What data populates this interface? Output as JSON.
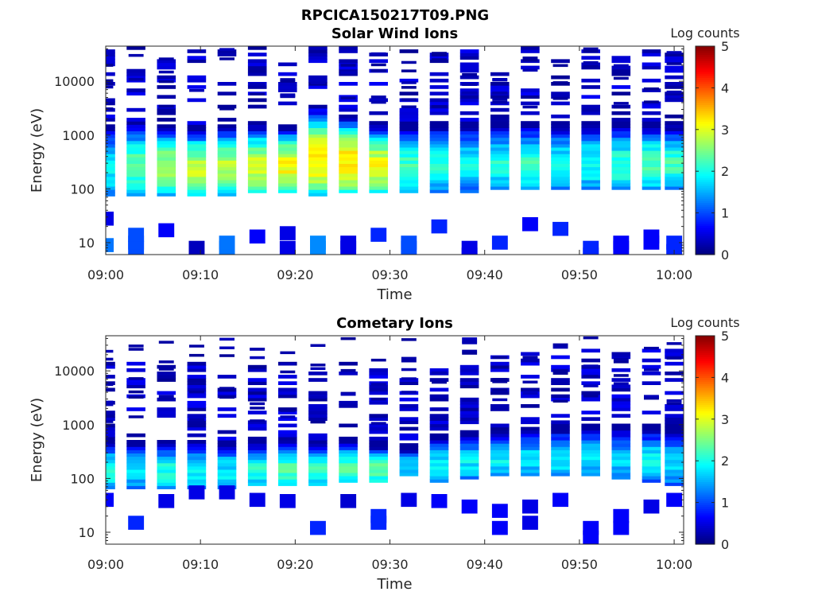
{
  "figure_title": "RPCICA150217T09.PNG",
  "chart_data": [
    {
      "type": "heatmap",
      "title": "Solar Wind Ions",
      "xlabel": "Time",
      "ylabel": "Energy (eV)",
      "yscale": "log",
      "ylim": [
        6,
        45000
      ],
      "x_ticks": [
        "09:00",
        "09:10",
        "09:20",
        "09:30",
        "09:40",
        "09:50",
        "10:00"
      ],
      "x_range_minutes": [
        0,
        61
      ],
      "y_ticks": [
        "10",
        "100",
        "1000",
        "10000"
      ],
      "y_tick_values": [
        10,
        100,
        1000,
        10000
      ],
      "colorbar": {
        "label": "Log counts",
        "min": 0,
        "max": 5,
        "ticks": [
          "0",
          "1",
          "2",
          "3",
          "4",
          "5"
        ],
        "colormap": "jet"
      },
      "columns": [
        {
          "t": 0.0,
          "core": [
            70,
            1600
          ],
          "peak": 1.8,
          "sparse": [
            [
              9,
              1.2
            ],
            [
              28,
              0.5
            ]
          ]
        },
        {
          "t": 3.2,
          "core": [
            70,
            1900
          ],
          "peak": 2.3,
          "sparse": [
            [
              8,
              1.0
            ],
            [
              10,
              1.0
            ],
            [
              14,
              1.0
            ]
          ]
        },
        {
          "t": 6.4,
          "core": [
            75,
            1600
          ],
          "peak": 2.7,
          "sparse": [
            [
              17,
              0.6
            ]
          ]
        },
        {
          "t": 9.6,
          "core": [
            70,
            1500
          ],
          "peak": 2.8,
          "sparse": [
            [
              8,
              0.3
            ]
          ]
        },
        {
          "t": 12.8,
          "core": [
            75,
            1600
          ],
          "peak": 2.8,
          "sparse": [
            [
              8,
              1.2
            ],
            [
              10,
              1.2
            ]
          ]
        },
        {
          "t": 16.0,
          "core": [
            80,
            1700
          ],
          "peak": 2.9,
          "sparse": [
            [
              13,
              0.6
            ]
          ]
        },
        {
          "t": 19.2,
          "core": [
            80,
            1600
          ],
          "peak": 3.1,
          "sparse": [
            [
              8,
              0.5
            ],
            [
              15,
              0.5
            ]
          ]
        },
        {
          "t": 22.4,
          "core": [
            70,
            3600
          ],
          "peak": 3.2,
          "sparse": [
            [
              8,
              1.3
            ],
            [
              10,
              1.3
            ]
          ]
        },
        {
          "t": 25.6,
          "core": [
            80,
            2500
          ],
          "peak": 3.3,
          "sparse": [
            [
              8,
              0.5
            ],
            [
              10,
              0.5
            ]
          ]
        },
        {
          "t": 28.8,
          "core": [
            85,
            1700
          ],
          "peak": 3.0,
          "sparse": [
            [
              14,
              0.8
            ]
          ]
        },
        {
          "t": 32.0,
          "core": [
            85,
            1500
          ],
          "peak": 2.2,
          "sparse": [
            [
              8,
              1.0
            ],
            [
              10,
              1.0
            ]
          ]
        },
        {
          "t": 35.2,
          "core": [
            90,
            1700
          ],
          "peak": 2.1,
          "sparse": [
            [
              20,
              0.8
            ]
          ]
        },
        {
          "t": 38.4,
          "core": [
            90,
            1700
          ],
          "peak": 1.9,
          "sparse": [
            [
              6,
              0.5
            ],
            [
              8,
              0.5
            ]
          ]
        },
        {
          "t": 41.6,
          "core": [
            95,
            1700
          ],
          "peak": 2.0,
          "sparse": [
            [
              10,
              0.8
            ]
          ]
        },
        {
          "t": 44.8,
          "core": [
            95,
            1700
          ],
          "peak": 2.1,
          "sparse": [
            [
              22,
              0.6
            ]
          ]
        },
        {
          "t": 48.0,
          "core": [
            95,
            1700
          ],
          "peak": 1.9,
          "sparse": [
            [
              18,
              0.8
            ]
          ]
        },
        {
          "t": 51.2,
          "core": [
            100,
            1700
          ],
          "peak": 2.0,
          "sparse": [
            [
              6,
              0.8
            ],
            [
              8,
              0.8
            ]
          ]
        },
        {
          "t": 54.4,
          "core": [
            95,
            1700
          ],
          "peak": 2.1,
          "sparse": [
            [
              8,
              0.6
            ],
            [
              10,
              0.6
            ]
          ]
        },
        {
          "t": 57.6,
          "core": [
            100,
            1700
          ],
          "peak": 2.3,
          "sparse": [
            [
              10,
              0.6
            ],
            [
              13,
              0.6
            ]
          ]
        },
        {
          "t": 60.0,
          "core": [
            100,
            1700
          ],
          "peak": 2.2,
          "sparse": [
            [
              7,
              0.8
            ],
            [
              10,
              0.8
            ]
          ]
        }
      ]
    },
    {
      "type": "heatmap",
      "title": "Cometary Ions",
      "xlabel": "Time",
      "ylabel": "Energy (eV)",
      "yscale": "log",
      "ylim": [
        6,
        45000
      ],
      "x_ticks": [
        "09:00",
        "09:10",
        "09:20",
        "09:30",
        "09:40",
        "09:50",
        "10:00"
      ],
      "x_range_minutes": [
        0,
        61
      ],
      "y_ticks": [
        "10",
        "100",
        "1000",
        "10000"
      ],
      "y_tick_values": [
        10,
        100,
        1000,
        10000
      ],
      "colorbar": {
        "label": "Log counts",
        "min": 0,
        "max": 5,
        "ticks": [
          "0",
          "1",
          "2",
          "3",
          "4",
          "5"
        ],
        "colormap": "jet"
      },
      "columns": [
        {
          "t": 0.0,
          "core": [
            65,
            600
          ],
          "peak": 1.9,
          "sparse": [
            [
              40,
              0.6
            ]
          ]
        },
        {
          "t": 3.2,
          "core": [
            65,
            550
          ],
          "peak": 1.7,
          "sparse": [
            [
              15,
              0.8
            ]
          ]
        },
        {
          "t": 6.4,
          "core": [
            65,
            550
          ],
          "peak": 2.0,
          "sparse": [
            [
              38,
              0.5
            ]
          ]
        },
        {
          "t": 9.6,
          "core": [
            65,
            550
          ],
          "peak": 1.9,
          "sparse": [
            [
              55,
              0.5
            ]
          ]
        },
        {
          "t": 12.8,
          "core": [
            65,
            550
          ],
          "peak": 1.8,
          "sparse": [
            [
              55,
              0.5
            ]
          ]
        },
        {
          "t": 16.0,
          "core": [
            70,
            550
          ],
          "peak": 2.0,
          "sparse": [
            [
              40,
              0.5
            ]
          ]
        },
        {
          "t": 19.2,
          "core": [
            75,
            600
          ],
          "peak": 2.2,
          "sparse": [
            [
              38,
              0.5
            ]
          ]
        },
        {
          "t": 22.4,
          "core": [
            75,
            550
          ],
          "peak": 2.2,
          "sparse": [
            [
              12,
              0.8
            ]
          ]
        },
        {
          "t": 25.6,
          "core": [
            80,
            600
          ],
          "peak": 2.2,
          "sparse": [
            [
              38,
              0.4
            ]
          ]
        },
        {
          "t": 28.8,
          "core": [
            85,
            500
          ],
          "peak": 2.3,
          "sparse": [
            [
              15,
              0.8
            ],
            [
              20,
              0.8
            ]
          ]
        },
        {
          "t": 32.0,
          "core": [
            120,
            450
          ],
          "peak": 1.8,
          "sparse": [
            [
              40,
              0.5
            ]
          ]
        },
        {
          "t": 35.2,
          "core": [
            90,
            700
          ],
          "peak": 1.9,
          "sparse": [
            [
              38,
              0.6
            ]
          ]
        },
        {
          "t": 38.4,
          "core": [
            100,
            750
          ],
          "peak": 1.8,
          "sparse": [
            [
              30,
              0.6
            ]
          ]
        },
        {
          "t": 41.6,
          "core": [
            110,
            800
          ],
          "peak": 1.8,
          "sparse": [
            [
              12,
              0.6
            ],
            [
              25,
              0.6
            ]
          ]
        },
        {
          "t": 44.8,
          "core": [
            110,
            900
          ],
          "peak": 1.7,
          "sparse": [
            [
              15,
              0.5
            ],
            [
              30,
              0.5
            ]
          ]
        },
        {
          "t": 48.0,
          "core": [
            110,
            1000
          ],
          "peak": 1.8,
          "sparse": [
            [
              40,
              0.6
            ]
          ]
        },
        {
          "t": 51.2,
          "core": [
            110,
            1000
          ],
          "peak": 1.7,
          "sparse": [
            [
              8,
              0.6
            ],
            [
              12,
              0.6
            ]
          ]
        },
        {
          "t": 54.4,
          "core": [
            100,
            1000
          ],
          "peak": 1.6,
          "sparse": [
            [
              12,
              0.6
            ],
            [
              20,
              0.6
            ]
          ]
        },
        {
          "t": 57.6,
          "core": [
            90,
            1000
          ],
          "peak": 1.8,
          "sparse": [
            [
              30,
              0.5
            ]
          ]
        },
        {
          "t": 60.0,
          "core": [
            70,
            1000
          ],
          "peak": 1.6,
          "sparse": [
            [
              40,
              0.6
            ]
          ]
        }
      ]
    }
  ]
}
